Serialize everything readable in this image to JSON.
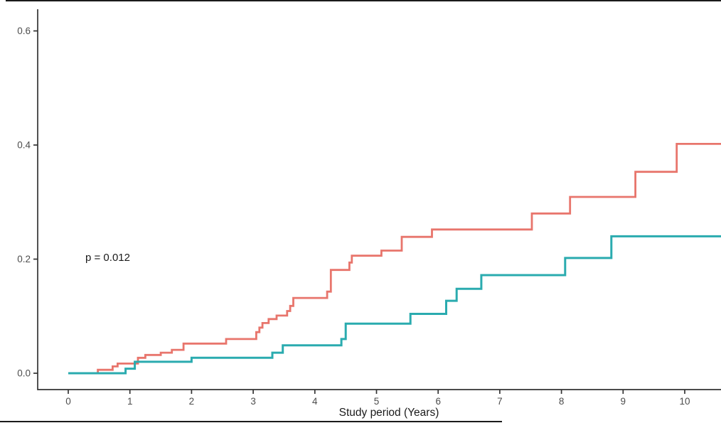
{
  "chart_data": {
    "type": "line",
    "subtype": "step-after",
    "title": "",
    "xlabel": "Study period (Years)",
    "ylabel": "",
    "xlim": [
      -0.5,
      10.6
    ],
    "ylim": [
      0,
      0.63
    ],
    "x_ticks": [
      0,
      1,
      2,
      3,
      4,
      5,
      6,
      7,
      8,
      9,
      10
    ],
    "y_ticks": [
      0.0,
      0.2,
      0.4,
      0.6
    ],
    "y_tick_labels": [
      "0.0",
      "0.2",
      "0.4",
      "0.6"
    ],
    "grid": "off",
    "legend_position": "none",
    "annotations": [
      {
        "text": "p = 0.012",
        "x": 0.55,
        "y": 0.2
      }
    ],
    "axis_color": "#333333",
    "tick_label_color": "#4d4d4d",
    "series": [
      {
        "name": "group-1-salmon",
        "color": "#e8756c",
        "stroke_width": 2.8,
        "points": [
          [
            0,
            0
          ],
          [
            0.48,
            0.006
          ],
          [
            0.72,
            0.012
          ],
          [
            0.8,
            0.017
          ],
          [
            1.13,
            0.027
          ],
          [
            1.25,
            0.032
          ],
          [
            1.5,
            0.036
          ],
          [
            1.68,
            0.041
          ],
          [
            1.87,
            0.052
          ],
          [
            2.56,
            0.06
          ],
          [
            3.05,
            0.072
          ],
          [
            3.1,
            0.08
          ],
          [
            3.15,
            0.088
          ],
          [
            3.25,
            0.095
          ],
          [
            3.38,
            0.101
          ],
          [
            3.55,
            0.109
          ],
          [
            3.6,
            0.118
          ],
          [
            3.65,
            0.132
          ],
          [
            4.2,
            0.143
          ],
          [
            4.26,
            0.181
          ],
          [
            4.56,
            0.194
          ],
          [
            4.6,
            0.206
          ],
          [
            5.08,
            0.215
          ],
          [
            5.41,
            0.239
          ],
          [
            5.9,
            0.252
          ],
          [
            7.52,
            0.28
          ],
          [
            8.14,
            0.309
          ],
          [
            9.2,
            0.353
          ],
          [
            9.87,
            0.402
          ],
          [
            10.6,
            0.402
          ]
        ]
      },
      {
        "name": "group-2-teal",
        "color": "#2aabaf",
        "stroke_width": 3,
        "points": [
          [
            0,
            0
          ],
          [
            0.93,
            0.008
          ],
          [
            1.08,
            0.02
          ],
          [
            2.0,
            0.027
          ],
          [
            3.31,
            0.036
          ],
          [
            3.48,
            0.049
          ],
          [
            4.43,
            0.06
          ],
          [
            4.5,
            0.087
          ],
          [
            5.55,
            0.104
          ],
          [
            6.13,
            0.127
          ],
          [
            6.3,
            0.148
          ],
          [
            6.7,
            0.172
          ],
          [
            8.06,
            0.202
          ],
          [
            8.81,
            0.24
          ],
          [
            10.6,
            0.24
          ]
        ]
      }
    ]
  },
  "labels": {
    "x_axis_title": "Study period (Years)",
    "p_value": "p = 0.012"
  }
}
